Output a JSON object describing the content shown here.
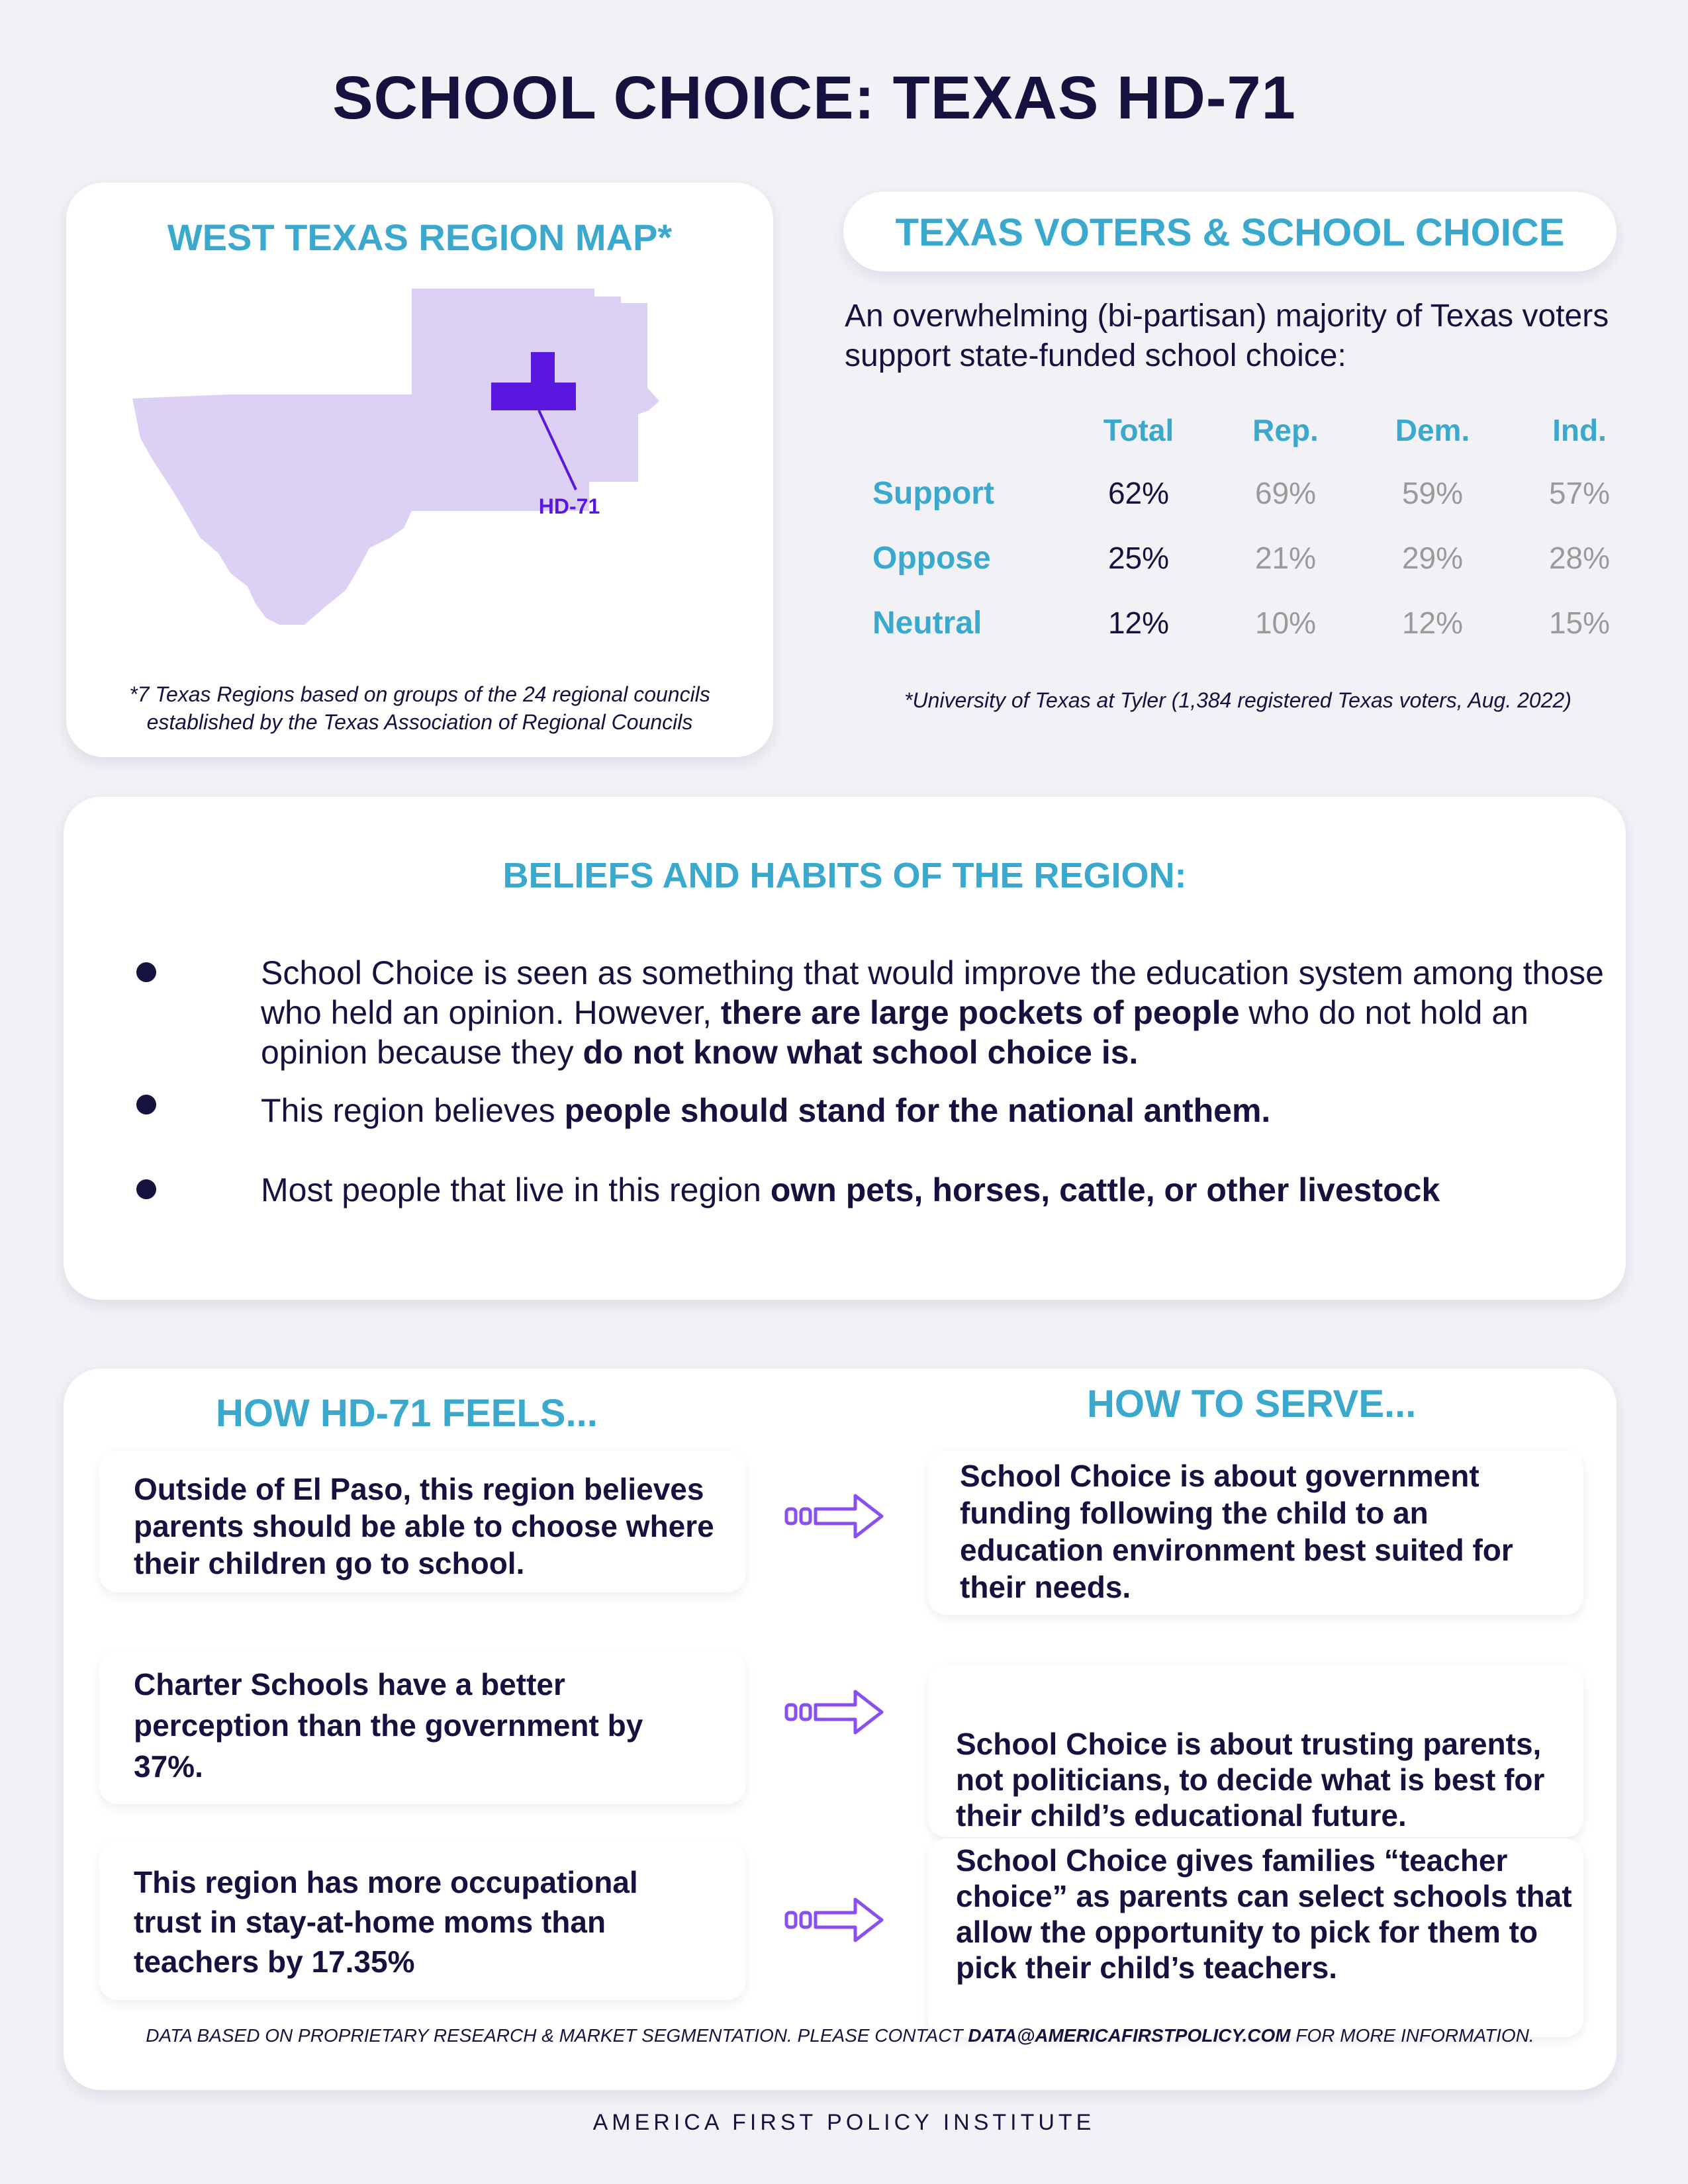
{
  "title": "SCHOOL CHOICE: TEXAS HD-71",
  "map_section": {
    "heading": "WEST TEXAS REGION MAP*",
    "district_label": "HD-71",
    "note": "*7 Texas Regions based on groups of the 24 regional councils established by the Texas Association of Regional Councils",
    "region_color": "#dcd0f4",
    "district_color": "#5a17e0"
  },
  "voters_section": {
    "heading": "TEXAS VOTERS & SCHOOL CHOICE",
    "intro": "An overwhelming (bi-partisan) majority of Texas voters support state-funded school choice:",
    "columns": [
      "Total",
      "Rep.",
      "Dem.",
      "Ind."
    ],
    "rows": [
      {
        "label": "Support",
        "values": [
          "62%",
          "69%",
          "59%",
          "57%"
        ]
      },
      {
        "label": "Oppose",
        "values": [
          "25%",
          "21%",
          "29%",
          "28%"
        ]
      },
      {
        "label": "Neutral",
        "values": [
          "12%",
          "10%",
          "12%",
          "15%"
        ]
      }
    ],
    "source": "*University of Texas at Tyler (1,384 registered Texas voters, Aug. 2022)"
  },
  "beliefs_section": {
    "heading": "BELIEFS AND HABITS OF THE REGION:",
    "bullets": [
      {
        "parts": [
          {
            "text": "School Choice is seen as something that would improve the education system among those who held an opinion. However, ",
            "bold": false
          },
          {
            "text": "there are large pockets of people",
            "bold": true
          },
          {
            "text": " who do not hold an opinion because they ",
            "bold": false
          },
          {
            "text": "do not know what school choice is.",
            "bold": true
          }
        ]
      },
      {
        "parts": [
          {
            "text": "This region believes ",
            "bold": false
          },
          {
            "text": "people should stand for the national anthem.",
            "bold": true
          }
        ]
      },
      {
        "parts": [
          {
            "text": "Most people that live in this region ",
            "bold": false
          },
          {
            "text": "own pets, horses, cattle, or other livestock",
            "bold": true
          }
        ]
      }
    ]
  },
  "serve_section": {
    "left_heading": "HOW HD-71 FEELS...",
    "right_heading": "HOW TO SERVE...",
    "feels": [
      "Outside of El Paso, this region believes parents should be able to choose where their children go to school.",
      "Charter Schools have a better perception than the government by 37%.",
      "This region has more occupational trust in stay-at-home moms than teachers by 17.35%"
    ],
    "serve": [
      "School Choice is about government funding following the child to an education environment best suited for their needs.",
      "School Choice is about trusting parents, not politicians, to decide what is best for their child’s educational future.",
      "School Choice gives families “teacher choice” as parents can select schools that allow the opportunity to pick for them to pick their child’s teachers."
    ],
    "arrow_color": "#8a4ff0"
  },
  "disclaimer": {
    "prefix": "DATA BASED ON PROPRIETARY RESEARCH & MARKET SEGMENTATION. PLEASE CONTACT ",
    "email": "DATA@AMERICAFIRSTPOLICY.COM",
    "suffix": " FOR MORE INFORMATION."
  },
  "footer": "AMERICA FIRST POLICY INSTITUTE"
}
